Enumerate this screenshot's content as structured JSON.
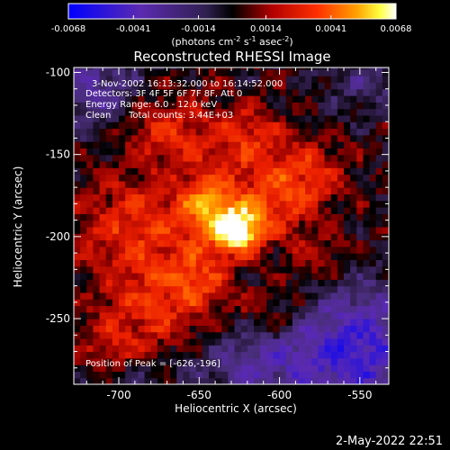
{
  "chart_data": {
    "type": "heatmap",
    "title": "Reconstructed RHESSI Image",
    "xlabel": "Heliocentric X (arcsec)",
    "ylabel": "Heliocentric Y (arcsec)",
    "xlim": [
      -728,
      -532
    ],
    "ylim": [
      -290,
      -97
    ],
    "xticks": [
      -700,
      -650,
      -600,
      -550
    ],
    "yticks": [
      -100,
      -150,
      -200,
      -250
    ],
    "colorbar": {
      "ticks": [
        "-0.0068",
        "-0.0041",
        "-0.0014",
        "0.0014",
        "0.0041",
        "0.0068"
      ],
      "range": [
        -0.0068,
        0.0068
      ],
      "units_prefix": "(photons cm",
      "units_exp1": "-2",
      "units_mid": " s",
      "units_exp2": "-1",
      "units_suffix": " asec",
      "units_exp3": "-2",
      "units_close": ")"
    },
    "annotations": {
      "time": "3-Nov-2002 16:13:32.000 to 16:14:52.000",
      "detectors": "Detectors: 3F 4F 5F 6F 7F 8F, Att 0",
      "energy": "Energy Range: 6.0 - 12.0 keV",
      "method": "Clean",
      "counts": "Total counts: 3.44E+03",
      "peak": "Position of Peak = [-626,-196]"
    },
    "peak": {
      "x": -626,
      "y": -196,
      "value": 0.0068
    },
    "emission_sources": [
      {
        "x": -626,
        "y": -196,
        "amp": 0.0068,
        "sx": 11,
        "sy": 9
      },
      {
        "x": -645,
        "y": -180,
        "amp": 0.0042,
        "sx": 13,
        "sy": 14
      },
      {
        "x": -605,
        "y": -178,
        "amp": 0.003,
        "sx": 20,
        "sy": 16
      },
      {
        "x": -690,
        "y": -195,
        "amp": 0.0028,
        "sx": 26,
        "sy": 22
      },
      {
        "x": -668,
        "y": -135,
        "amp": 0.0026,
        "sx": 22,
        "sy": 16
      },
      {
        "x": -618,
        "y": -140,
        "amp": 0.0024,
        "sx": 16,
        "sy": 14
      },
      {
        "x": -580,
        "y": -160,
        "amp": 0.0022,
        "sx": 16,
        "sy": 14
      },
      {
        "x": -680,
        "y": -245,
        "amp": 0.0024,
        "sx": 24,
        "sy": 20
      },
      {
        "x": -650,
        "y": -225,
        "amp": 0.0026,
        "sx": 16,
        "sy": 14
      },
      {
        "x": -575,
        "y": -215,
        "amp": 0.0018,
        "sx": 14,
        "sy": 12
      },
      {
        "x": -705,
        "y": -270,
        "amp": 0.0016,
        "sx": 14,
        "sy": 12
      },
      {
        "x": -600,
        "y": -245,
        "amp": 0.0016,
        "sx": 16,
        "sy": 12
      }
    ],
    "negative_regions": [
      {
        "x": -555,
        "y": -268,
        "amp": -0.0045,
        "sx": 32,
        "sy": 28
      },
      {
        "x": -715,
        "y": -110,
        "amp": -0.003,
        "sx": 20,
        "sy": 18
      },
      {
        "x": -620,
        "y": -278,
        "amp": -0.0025,
        "sx": 26,
        "sy": 14
      },
      {
        "x": -545,
        "y": -105,
        "amp": -0.0018,
        "sx": 20,
        "sy": 14
      },
      {
        "x": -695,
        "y": -285,
        "amp": -0.0012,
        "sx": 20,
        "sy": 10
      }
    ]
  },
  "footer": {
    "timestamp": "2-May-2022 22:51"
  }
}
